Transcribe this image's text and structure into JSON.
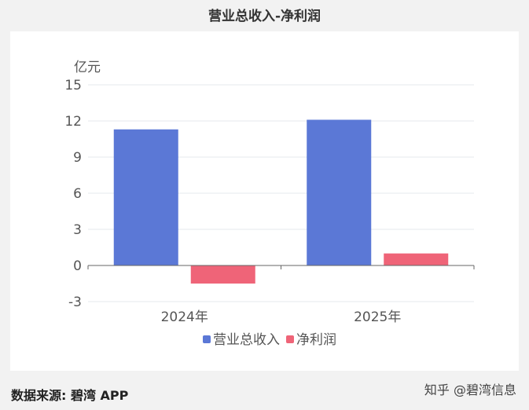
{
  "chart_data": {
    "type": "bar",
    "title": "营业总收入-净利润",
    "ylabel": "亿元",
    "categories": [
      "2024年",
      "2025年"
    ],
    "yticks": [
      "15",
      "12",
      "9",
      "6",
      "3",
      "0",
      "-3"
    ],
    "ylim": [
      -3,
      15
    ],
    "grid": true,
    "legend_position": "bottom",
    "series": [
      {
        "name": "营业总收入",
        "values": [
          11.3,
          12.1
        ],
        "color": "#5b78d6"
      },
      {
        "name": "净利润",
        "values": [
          -1.5,
          1.0
        ],
        "color": "#ef6478"
      }
    ]
  },
  "footer": {
    "source": "数据来源: 碧湾 APP",
    "credit": "知乎 @碧湾信息"
  }
}
